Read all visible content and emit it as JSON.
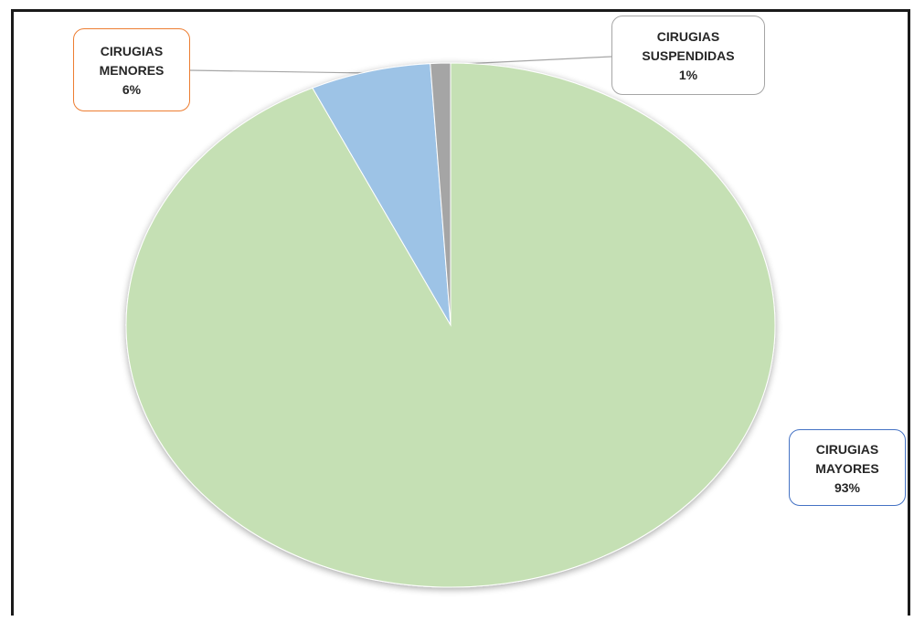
{
  "chart_data": {
    "type": "pie",
    "title": "",
    "start_angle_deg": 0,
    "direction": "clockwise",
    "slices": [
      {
        "label_lines": [
          "CIRUGIAS",
          "MAYORES"
        ],
        "percent_label": "93%",
        "value": 93,
        "color": "#c5e0b4",
        "callout_border": "#4472c4"
      },
      {
        "label_lines": [
          "CIRUGIAS",
          "MENORES"
        ],
        "percent_label": "6%",
        "value": 6,
        "color": "#9dc3e6",
        "callout_border": "#ed7d31"
      },
      {
        "label_lines": [
          "CIRUGIAS",
          "SUSPENDIDAS"
        ],
        "percent_label": "1%",
        "value": 1,
        "color": "#a5a5a5",
        "callout_border": "#a5a5a5"
      }
    ],
    "legend": "none"
  }
}
